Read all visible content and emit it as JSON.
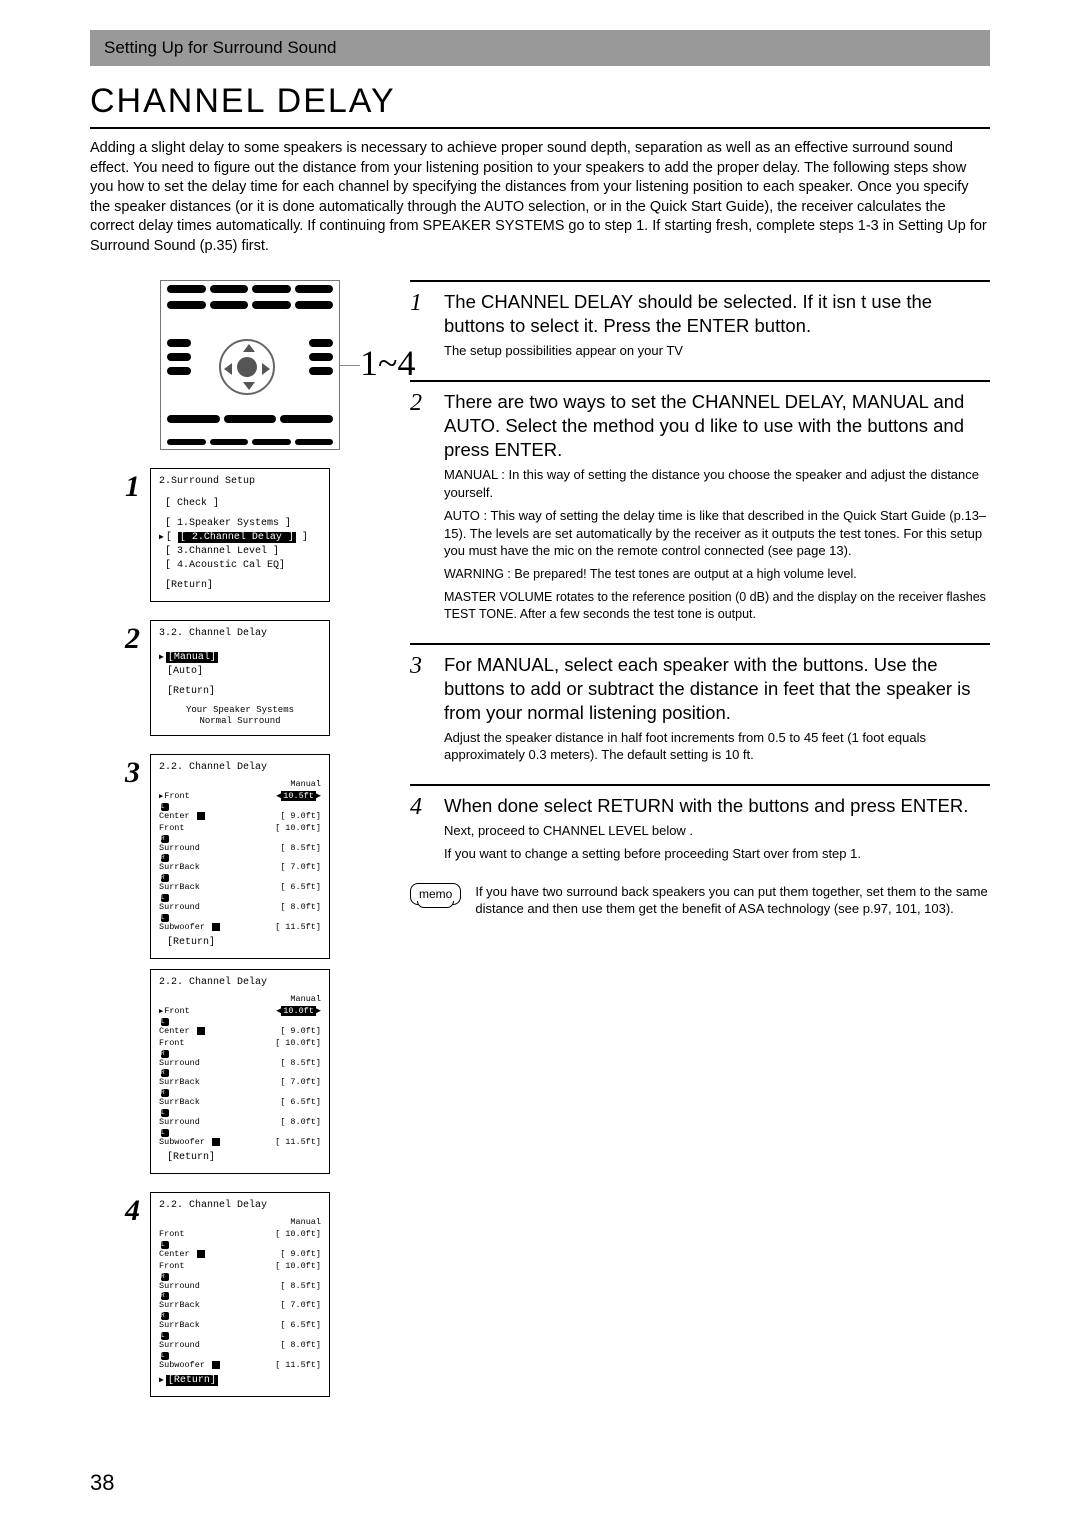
{
  "page_number": "38",
  "section_bar": "Setting Up for Surround Sound",
  "main_title": "CHANNEL DELAY",
  "intro": "Adding a slight delay to some speakers is necessary to achieve proper sound depth, separation as well as an effective surround sound effect. You need to figure out the distance from your listening position to your speakers to add the proper delay. The following steps show you how to set the delay time for each channel by specifying the distances from your listening position to each speaker. Once you specify the speaker distances (or it is done automatically through the AUTO selection, or in the Quick Start Guide), the receiver calculates the correct delay times automatically. If continuing from SPEAKER SYSTEMS go to step 1. If starting fresh, complete steps 1-3 in  Setting Up for Surround Sound  (p.35) first.",
  "range_label": "1~4",
  "osd1": {
    "title": "2.Surround Setup",
    "items": [
      "[ Check ]",
      "[ 1.Speaker Systems ]",
      "[ 2.Channel Delay ]",
      "[ 3.Channel Level ]",
      "[ 4.Acoustic Cal EQ]",
      "[Return]"
    ],
    "selected_index": 2
  },
  "osd2": {
    "title": "3.2. Channel  Delay",
    "items": [
      "[Manual]",
      "[Auto]",
      "[Return]"
    ],
    "selected_index": 0,
    "foot1": "Your Speaker Systems",
    "foot2": "Normal Surround"
  },
  "osd3a": {
    "title": "2.2. Channel  Delay",
    "mode": "Manual",
    "rows": [
      {
        "lab": "Front",
        "ico": "L",
        "val": "10.5ft",
        "sel": true,
        "arrow": true
      },
      {
        "lab": "Center",
        "ico": "",
        "val": "9.0ft"
      },
      {
        "lab": "Front",
        "ico": "R",
        "val": "10.0ft"
      },
      {
        "lab": "Surround",
        "ico": "R",
        "val": "8.5ft"
      },
      {
        "lab": "SurrBack",
        "ico": "R",
        "val": "7.0ft"
      },
      {
        "lab": "SurrBack",
        "ico": "L",
        "val": "6.5ft"
      },
      {
        "lab": "Surround",
        "ico": "L",
        "val": "8.0ft"
      },
      {
        "lab": "Subwoofer",
        "ico": "",
        "val": "11.5ft"
      }
    ],
    "return_label": "[Return]"
  },
  "osd3b": {
    "title": "2.2. Channel  Delay",
    "mode": "Manual",
    "rows": [
      {
        "lab": "Front",
        "ico": "L",
        "val": "10.0ft",
        "sel": true,
        "arrow": true
      },
      {
        "lab": "Center",
        "ico": "",
        "val": "9.0ft"
      },
      {
        "lab": "Front",
        "ico": "R",
        "val": "10.0ft"
      },
      {
        "lab": "Surround",
        "ico": "R",
        "val": "8.5ft"
      },
      {
        "lab": "SurrBack",
        "ico": "R",
        "val": "7.0ft"
      },
      {
        "lab": "SurrBack",
        "ico": "L",
        "val": "6.5ft"
      },
      {
        "lab": "Surround",
        "ico": "L",
        "val": "8.0ft"
      },
      {
        "lab": "Subwoofer",
        "ico": "",
        "val": "11.5ft"
      }
    ],
    "return_label": "[Return]"
  },
  "osd4": {
    "title": "2.2. Channel  Delay",
    "mode": "Manual",
    "rows": [
      {
        "lab": "Front",
        "ico": "L",
        "val": "10.0ft"
      },
      {
        "lab": "Center",
        "ico": "",
        "val": "9.0ft"
      },
      {
        "lab": "Front",
        "ico": "R",
        "val": "10.0ft"
      },
      {
        "lab": "Surround",
        "ico": "R",
        "val": "8.5ft"
      },
      {
        "lab": "SurrBack",
        "ico": "R",
        "val": "7.0ft"
      },
      {
        "lab": "SurrBack",
        "ico": "L",
        "val": "6.5ft"
      },
      {
        "lab": "Surround",
        "ico": "L",
        "val": "8.0ft"
      },
      {
        "lab": "Subwoofer",
        "ico": "",
        "val": "11.5ft"
      }
    ],
    "return_label": "[Return]",
    "return_selected": true
  },
  "steps": {
    "s1": {
      "num": "1",
      "headline": "The CHANNEL DELAY should be selected. If it isn   t use the          buttons to select it. Press the ENTER button.",
      "sub": "The setup possibilities appear on your TV"
    },
    "s2": {
      "num": "2",
      "headline": "There are two ways to set the CHANNEL DELAY, MANUAL and AUTO. Select the method you   d like to use with the             buttons and press ENTER.",
      "manual": "MANUAL :  In this way of setting the distance you choose the speaker and adjust the distance yourself.",
      "auto": "AUTO : This way of setting the delay time is like that described in the Quick Start Guide (p.13–15). The levels are set automatically by the receiver as it outputs the test tones. For this setup you must have the mic on the remote control connected (see page 13).",
      "warn": "WARNING :  Be prepared! The test tones are output at a high volume level.",
      "master": "MASTER VOLUME rotates to the reference position (0 dB) and the display on the receiver flashes TEST TONE. After a few seconds the test tone is output."
    },
    "s3": {
      "num": "3",
      "headline": "For MANUAL, select each speaker with the         buttons. Use the              buttons to add or subtract the distance in feet that the speaker is from your normal listening position.",
      "sub": "Adjust the speaker distance in half foot increments from 0.5 to 45 feet (1 foot equals approximately 0.3 meters). The default setting is 10 ft."
    },
    "s4": {
      "num": "4",
      "headline": "When done select RETURN with the      buttons and press ENTER.",
      "sub1": "Next, proceed to CHANNEL LEVEL below .",
      "sub2": "If you want to change a setting before proceeding Start over from step 1."
    }
  },
  "memo": {
    "label": "memo",
    "text": "If you have two surround back speakers you can put them together, set them to the same distance and then use them get the benefit of ASA technology (see p.97, 101, 103)."
  }
}
